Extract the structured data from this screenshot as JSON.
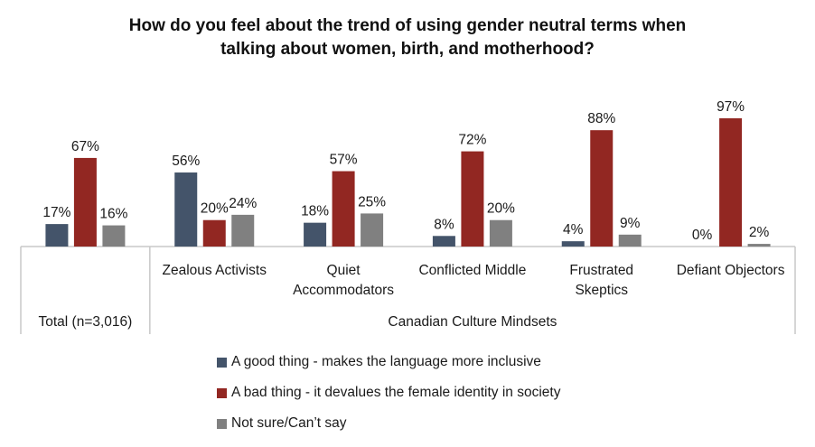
{
  "chart_data": {
    "type": "bar",
    "title": "How do you feel about the trend of using gender neutral terms when talking about women, birth, and motherhood?",
    "title_lines": [
      "How do you feel about the trend of using gender neutral terms when",
      "talking about women, birth, and motherhood?"
    ],
    "categories": [
      "Total (n=3,016)",
      "Zealous Activists",
      "Quiet Accommodators",
      "Conflicted Middle",
      "Frustrated Skeptics",
      "Defiant Objectors"
    ],
    "category_lines": [
      [
        "Total (n=3,016)"
      ],
      [
        "Zealous Activists"
      ],
      [
        "Quiet",
        "Accommodators"
      ],
      [
        "Conflicted Middle"
      ],
      [
        "Frustrated",
        "Skeptics"
      ],
      [
        "Defiant Objectors"
      ]
    ],
    "group_label": "Canadian Culture Mindsets",
    "series": [
      {
        "name": "A good thing -  makes the language more inclusive",
        "color": "#44546a",
        "values": [
          17,
          56,
          18,
          8,
          4,
          0
        ]
      },
      {
        "name": "A bad thing -  it devalues the female identity in society",
        "color": "#922722",
        "values": [
          67,
          20,
          57,
          72,
          88,
          97
        ]
      },
      {
        "name": "Not sure/Can’t say",
        "color": "#808080",
        "values": [
          16,
          24,
          25,
          20,
          9,
          2
        ]
      }
    ],
    "value_suffix": "%",
    "ylim": [
      0,
      100
    ],
    "grid": false,
    "legend_position": "bottom"
  }
}
